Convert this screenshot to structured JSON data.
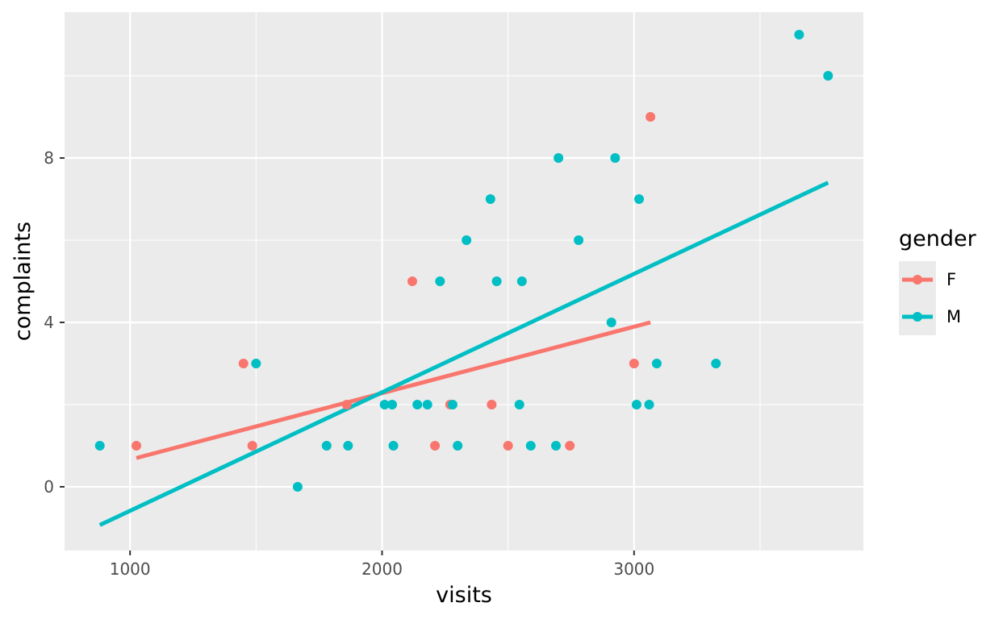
{
  "chart_data": {
    "type": "scatter",
    "xlabel": "visits",
    "ylabel": "complaints",
    "xlim": [
      740,
      3910
    ],
    "ylim": [
      -1.55,
      11.55
    ],
    "x_ticks": [
      1000,
      2000,
      3000
    ],
    "x_tick_labels": [
      "1000",
      "2000",
      "3000"
    ],
    "y_ticks": [
      0,
      4,
      8
    ],
    "y_tick_labels": [
      "0",
      "4",
      "8"
    ],
    "grid": true,
    "legend": {
      "title": "gender",
      "position": "right"
    },
    "series": [
      {
        "name": "F",
        "color": "#F8766D",
        "points": [
          {
            "x": 1025,
            "y": 1
          },
          {
            "x": 1450,
            "y": 3
          },
          {
            "x": 1485,
            "y": 1
          },
          {
            "x": 1860,
            "y": 2
          },
          {
            "x": 2120,
            "y": 5
          },
          {
            "x": 2210,
            "y": 1
          },
          {
            "x": 2270,
            "y": 2
          },
          {
            "x": 2435,
            "y": 2
          },
          {
            "x": 2500,
            "y": 1
          },
          {
            "x": 2745,
            "y": 1
          },
          {
            "x": 3000,
            "y": 3
          },
          {
            "x": 3065,
            "y": 9
          }
        ],
        "trend": [
          {
            "x": 1025,
            "y": 0.7
          },
          {
            "x": 3065,
            "y": 4.0
          }
        ]
      },
      {
        "name": "M",
        "color": "#00BFC4",
        "points": [
          {
            "x": 880,
            "y": 1
          },
          {
            "x": 1500,
            "y": 3
          },
          {
            "x": 1665,
            "y": 0
          },
          {
            "x": 1780,
            "y": 1
          },
          {
            "x": 1865,
            "y": 1
          },
          {
            "x": 2010,
            "y": 2
          },
          {
            "x": 2040,
            "y": 2
          },
          {
            "x": 2045,
            "y": 1
          },
          {
            "x": 2140,
            "y": 2
          },
          {
            "x": 2180,
            "y": 2
          },
          {
            "x": 2230,
            "y": 5
          },
          {
            "x": 2280,
            "y": 2
          },
          {
            "x": 2300,
            "y": 1
          },
          {
            "x": 2335,
            "y": 6
          },
          {
            "x": 2430,
            "y": 7
          },
          {
            "x": 2455,
            "y": 5
          },
          {
            "x": 2545,
            "y": 2
          },
          {
            "x": 2555,
            "y": 5
          },
          {
            "x": 2590,
            "y": 1
          },
          {
            "x": 2690,
            "y": 1
          },
          {
            "x": 2700,
            "y": 8
          },
          {
            "x": 2780,
            "y": 6
          },
          {
            "x": 2910,
            "y": 4
          },
          {
            "x": 2925,
            "y": 8
          },
          {
            "x": 3010,
            "y": 2
          },
          {
            "x": 3020,
            "y": 7
          },
          {
            "x": 3060,
            "y": 2
          },
          {
            "x": 3090,
            "y": 3
          },
          {
            "x": 3325,
            "y": 3
          },
          {
            "x": 3655,
            "y": 11
          },
          {
            "x": 3770,
            "y": 10
          }
        ],
        "trend": [
          {
            "x": 880,
            "y": -0.93
          },
          {
            "x": 3770,
            "y": 7.4
          }
        ]
      }
    ]
  }
}
